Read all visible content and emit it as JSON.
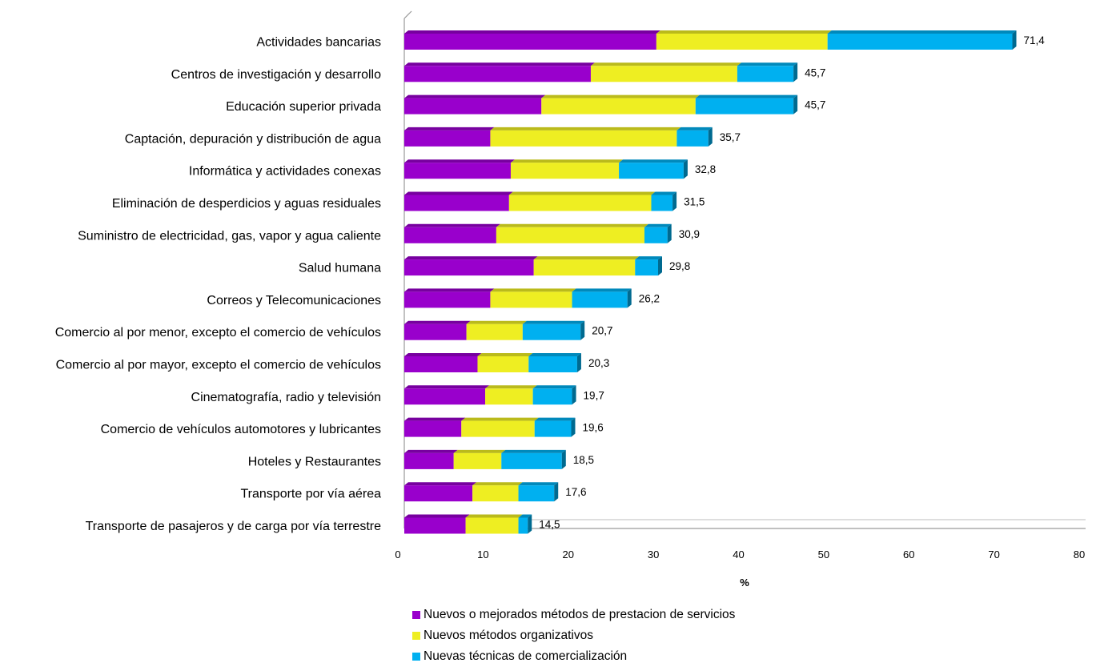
{
  "chart_data": {
    "type": "bar",
    "orientation": "horizontal",
    "stacked": true,
    "categories": [
      "Actividades bancarias",
      "Centros de investigación y desarrollo",
      "Educación superior privada",
      "Captación, depuración y distribución de agua",
      "Informática y actividades conexas",
      "Eliminación de desperdicios y aguas residuales",
      "Suministro de electricidad, gas, vapor y agua caliente",
      "Salud humana",
      "Correos y Telecomunicaciones",
      "Comercio al por menor, excepto el comercio de vehículos",
      "Comercio al por mayor, excepto el comercio de vehículos",
      "Cinematografía, radio y televisión",
      "Comercio de vehículos automotores y lubricantes",
      "Hoteles y Restaurantes",
      "Transporte por vía aérea",
      "Transporte de pasajeros y de carga por vía terrestre"
    ],
    "series": [
      {
        "name": "Nuevos o mejorados métodos de prestacion de servicios",
        "color": "#9900CC",
        "values": [
          29.6,
          21.9,
          16.1,
          10.1,
          12.5,
          12.3,
          10.8,
          15.2,
          10.1,
          7.3,
          8.6,
          9.5,
          6.7,
          5.8,
          8.0,
          7.2
        ]
      },
      {
        "name": "Nuevos métodos organizativos",
        "color": "#EEEE22",
        "values": [
          20.1,
          17.2,
          18.1,
          21.9,
          12.7,
          16.7,
          17.4,
          11.9,
          9.6,
          6.6,
          6.0,
          5.6,
          8.6,
          5.6,
          5.4,
          6.2
        ]
      },
      {
        "name": "Nuevas técnicas de comercialización",
        "color": "#00B0F0",
        "values": [
          21.7,
          6.6,
          11.5,
          3.7,
          7.6,
          2.5,
          2.7,
          2.7,
          6.5,
          6.8,
          5.7,
          4.6,
          4.3,
          7.1,
          4.2,
          1.1
        ]
      }
    ],
    "totals": [
      "71,4",
      "45,7",
      "45,7",
      "35,7",
      "32,8",
      "31,5",
      "30,9",
      "29,8",
      "26,2",
      "20,7",
      "20,3",
      "19,7",
      "19,6",
      "18,5",
      "17,6",
      "14,5"
    ],
    "xlabel": "%",
    "ylabel": "",
    "xlim": [
      0,
      80
    ],
    "xticks": [
      0,
      10,
      20,
      30,
      40,
      50,
      60,
      70,
      80
    ],
    "grid": false,
    "legend_position": "bottom"
  }
}
